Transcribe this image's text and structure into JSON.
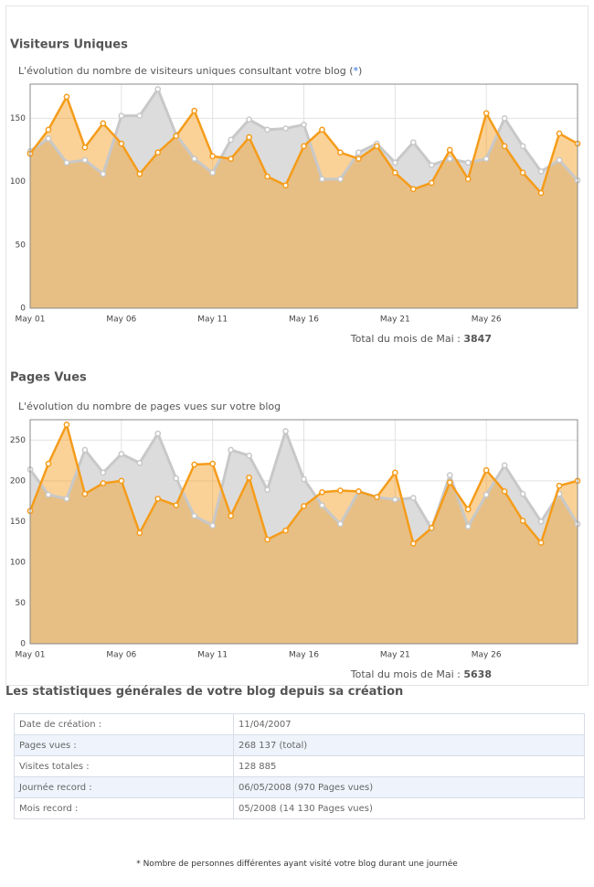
{
  "chart_data": [
    {
      "type": "line",
      "title": "Visiteurs Uniques",
      "subtitle": "L'évolution du nombre de visiteurs uniques consultant votre blog",
      "subtitle_link": "*",
      "total_label": "Total du mois de Mai :",
      "total": 3847,
      "categories": [
        "May 01",
        null,
        null,
        null,
        null,
        "May 06",
        null,
        null,
        null,
        null,
        "May 11",
        null,
        null,
        null,
        null,
        "May 16",
        null,
        null,
        null,
        null,
        "May 21",
        null,
        null,
        null,
        null,
        "May 26",
        null,
        null,
        null,
        null,
        null
      ],
      "series": [
        {
          "color": "#c8c8c8",
          "values": [
            124,
            134,
            115,
            117,
            106,
            152,
            152,
            173,
            137,
            118,
            107,
            133,
            149,
            141,
            142,
            145,
            102,
            102,
            123,
            130,
            115,
            131,
            113,
            118,
            115,
            118,
            150,
            128,
            108,
            117,
            101
          ]
        },
        {
          "color": "#f59c1a",
          "values": [
            122,
            141,
            167,
            127,
            146,
            130,
            106,
            123,
            136,
            156,
            120,
            118,
            135,
            104,
            97,
            128,
            141,
            123,
            118,
            128,
            107,
            94,
            99,
            125,
            102,
            154,
            128,
            107,
            91,
            138,
            130
          ]
        }
      ],
      "ylim": [
        0,
        177
      ],
      "yticks": [
        0,
        50,
        100,
        150
      ],
      "grid": true
    },
    {
      "type": "line",
      "title": "Pages Vues",
      "subtitle": "L'évolution du nombre de pages vues sur votre blog",
      "total_label": "Total du mois de Mai :",
      "total": 5638,
      "categories": [
        "May 01",
        null,
        null,
        null,
        null,
        "May 06",
        null,
        null,
        null,
        null,
        "May 11",
        null,
        null,
        null,
        null,
        "May 16",
        null,
        null,
        null,
        null,
        "May 21",
        null,
        null,
        null,
        null,
        "May 26",
        null,
        null,
        null,
        null,
        null
      ],
      "series": [
        {
          "color": "#c8c8c8",
          "values": [
            214,
            183,
            178,
            238,
            210,
            233,
            222,
            258,
            203,
            157,
            145,
            238,
            231,
            189,
            261,
            202,
            170,
            147,
            187,
            180,
            177,
            179,
            141,
            207,
            144,
            183,
            219,
            184,
            150,
            184,
            147
          ]
        },
        {
          "color": "#f59c1a",
          "values": [
            163,
            221,
            269,
            184,
            197,
            200,
            136,
            178,
            170,
            220,
            221,
            157,
            204,
            128,
            139,
            169,
            186,
            188,
            187,
            180,
            210,
            123,
            142,
            198,
            165,
            213,
            187,
            151,
            124,
            194,
            200
          ]
        }
      ],
      "ylim": [
        0,
        275
      ],
      "yticks": [
        0,
        50,
        100,
        150,
        200,
        250
      ],
      "grid": true
    }
  ],
  "stats": {
    "title": "Les statistiques générales de votre blog depuis sa création",
    "rows": [
      [
        "Date de création :",
        "11/04/2007"
      ],
      [
        "Pages vues :",
        "268 137 (total)"
      ],
      [
        "Visites totales :",
        "128 885"
      ],
      [
        "Journée record :",
        "06/05/2008 (970 Pages vues)"
      ],
      [
        "Mois record :",
        "05/2008 (14 130 Pages vues)"
      ]
    ]
  },
  "footnote": "* Nombre de personnes différentes ayant visité votre blog durant une journée"
}
